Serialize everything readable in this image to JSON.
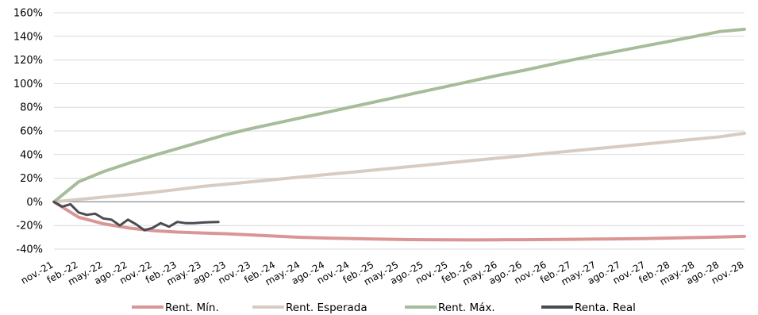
{
  "chart_data": {
    "type": "line",
    "title": "",
    "xlabel": "",
    "ylabel": "",
    "ylim": [
      -40,
      160
    ],
    "y_ticks": [
      160,
      140,
      120,
      100,
      80,
      60,
      40,
      20,
      0,
      -20,
      -40
    ],
    "y_tick_labels": [
      "160%",
      "140%",
      "120%",
      "100%",
      "80%",
      "60%",
      "40%",
      "20%",
      "0%",
      "-20%",
      "-40%"
    ],
    "grid": true,
    "legend_position": "bottom",
    "categories": [
      "nov.-21",
      "feb.-22",
      "may.-22",
      "ago.-22",
      "nov.-22",
      "feb.-23",
      "may.-23",
      "ago.-23",
      "nov.-23",
      "feb.-24",
      "may.-24",
      "ago.-24",
      "nov.-24",
      "feb.-25",
      "may.-25",
      "ago.-25",
      "nov.-25",
      "feb.-26",
      "may.-26",
      "ago.-26",
      "nov.-26",
      "feb.-27",
      "may.-27",
      "ago.-27",
      "nov.-27",
      "feb.-28",
      "may.-28",
      "ago.-28",
      "nov.-28"
    ],
    "series": [
      {
        "name": "Rent. Mín.",
        "color": "#d99694",
        "values": [
          0,
          -13,
          -18.5,
          -22,
          -24.3,
          -25.6,
          -26.3,
          -27,
          -28,
          -29,
          -30,
          -30.6,
          -31,
          -31.5,
          -31.8,
          -32,
          -32.1,
          -32.2,
          -32.1,
          -32,
          -31.9,
          -31.7,
          -31.5,
          -31.3,
          -31,
          -30.6,
          -30.2,
          -29.7,
          -29.2
        ]
      },
      {
        "name": "Rent. Esperada",
        "color": "#d8ccc2",
        "values": [
          0,
          2,
          4,
          6,
          8,
          10.5,
          13,
          15,
          17,
          19,
          21,
          23,
          25,
          27,
          29,
          31,
          33,
          35,
          37,
          39,
          41,
          43,
          45,
          47,
          49,
          51,
          53,
          55,
          58
        ]
      },
      {
        "name": "Rent. Máx.",
        "color": "#a7bc9b",
        "values": [
          0,
          17,
          25.5,
          32.5,
          39,
          45,
          51,
          57,
          62,
          66.5,
          71,
          75.5,
          80,
          84.5,
          89,
          93.5,
          98,
          102.5,
          107,
          111,
          115.5,
          120,
          124,
          128,
          132,
          136,
          140,
          144,
          146
        ]
      },
      {
        "name": "Renta. Real",
        "color": "#4a4c52",
        "x": [
          0,
          0.33,
          0.67,
          1.0,
          1.33,
          1.67,
          2.0,
          2.33,
          2.67,
          3.0,
          3.33,
          3.67,
          4.0,
          4.33,
          4.67,
          5.0,
          5.33,
          5.67,
          6.0,
          6.33,
          6.67
        ],
        "values": [
          0,
          -4,
          -2,
          -9,
          -11,
          -10,
          -14,
          -15,
          -20,
          -15,
          -19,
          -24,
          -22,
          -18,
          -21,
          -17,
          -18,
          -18,
          -17.5,
          -17.2,
          -17
        ]
      }
    ]
  }
}
